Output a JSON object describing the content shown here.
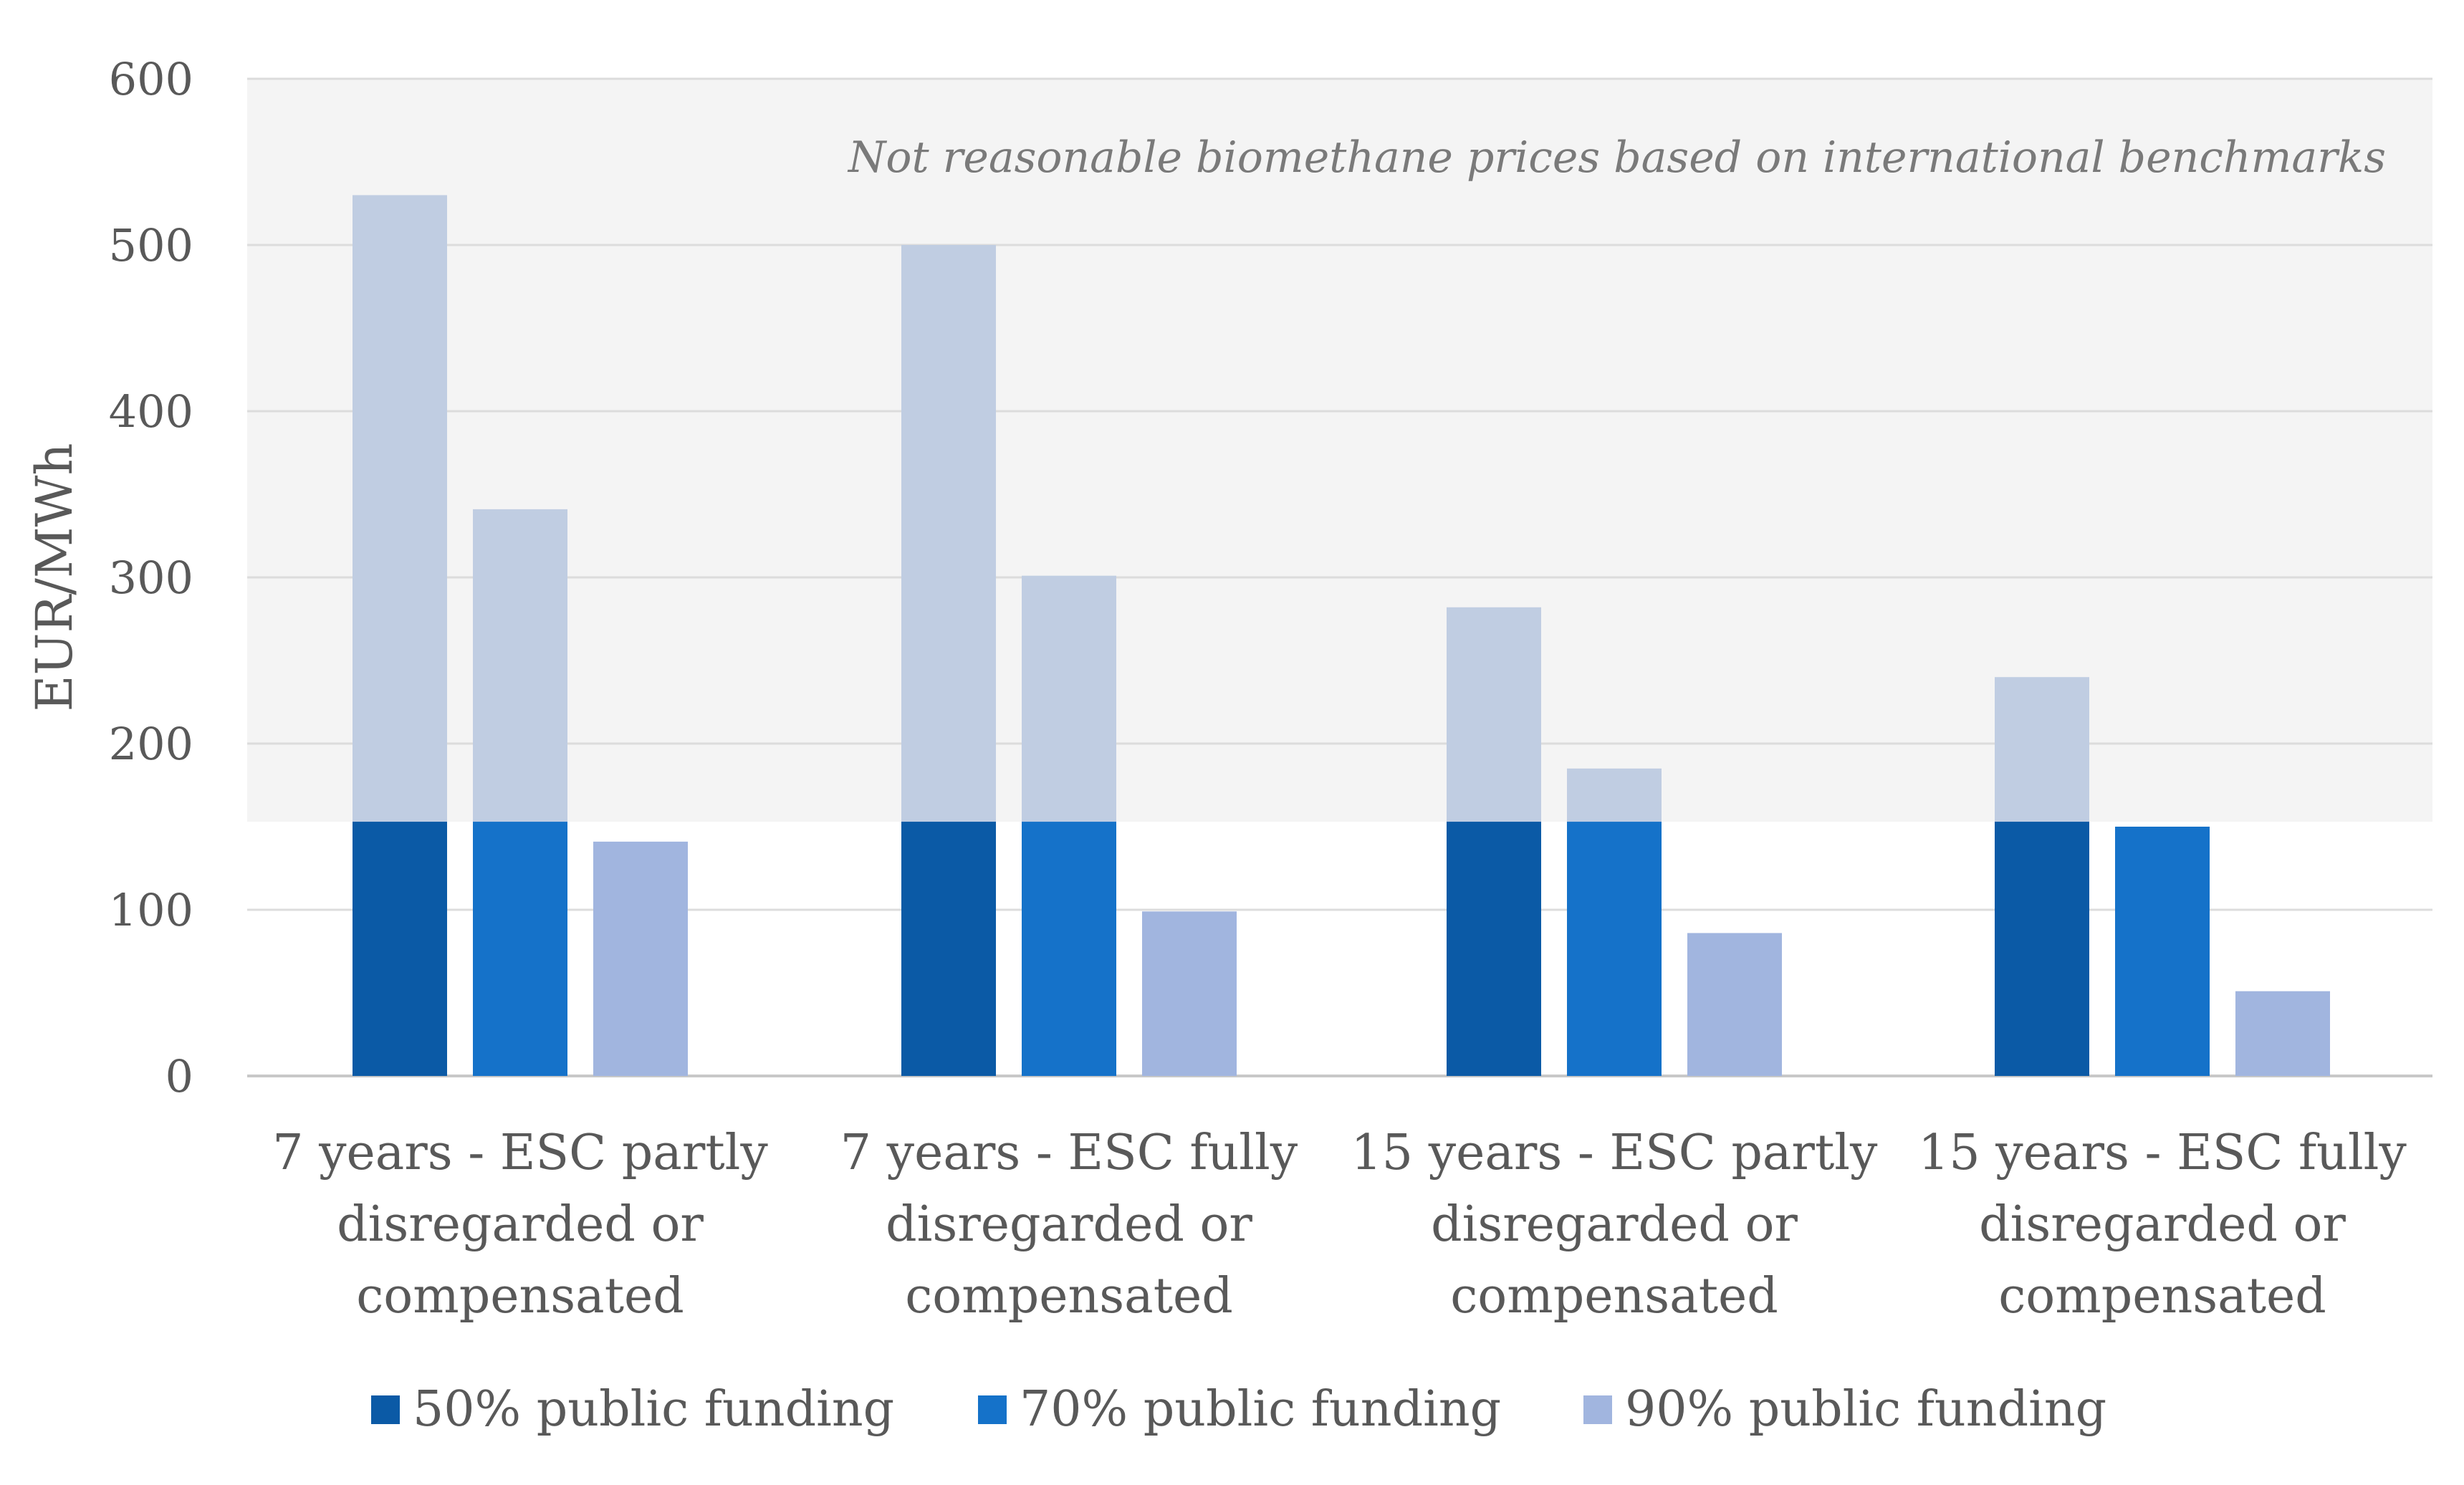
{
  "chart_data": {
    "type": "bar",
    "title": "",
    "xlabel": "",
    "ylabel": "EUR/MWh",
    "ylim": [
      0,
      600
    ],
    "yticks": [
      0,
      100,
      200,
      300,
      400,
      500,
      600
    ],
    "grid": true,
    "legend_position": "bottom",
    "categories": [
      [
        "7 years - ESC partly",
        "disregarded or",
        "compensated"
      ],
      [
        "7 years - ESC fully",
        "disregarded or",
        "compensated"
      ],
      [
        "15 years - ESC partly",
        "disregarded or",
        "compensated"
      ],
      [
        "15 years - ESC fully",
        "disregarded or",
        "compensated"
      ]
    ],
    "series": [
      {
        "name": "50% public funding",
        "values": [
          530,
          500,
          282,
          240
        ],
        "color": "#0b5aa6"
      },
      {
        "name": "70% public funding",
        "values": [
          341,
          301,
          185,
          150
        ],
        "color": "#1572c9"
      },
      {
        "name": "90% public funding",
        "values": [
          141,
          99,
          86,
          51
        ],
        "color": "#a1b5df"
      }
    ],
    "unreasonable_threshold": 153,
    "overflow_color": "#c0cde2",
    "annotation": {
      "text": "Not reasonable biomethane prices based on international benchmarks",
      "shaded_from": 153,
      "shaded_to": 600,
      "shade_color": "#f4f4f4"
    },
    "colors": {
      "axis_text": "#595959",
      "gridline": "#dcdcdc"
    }
  }
}
